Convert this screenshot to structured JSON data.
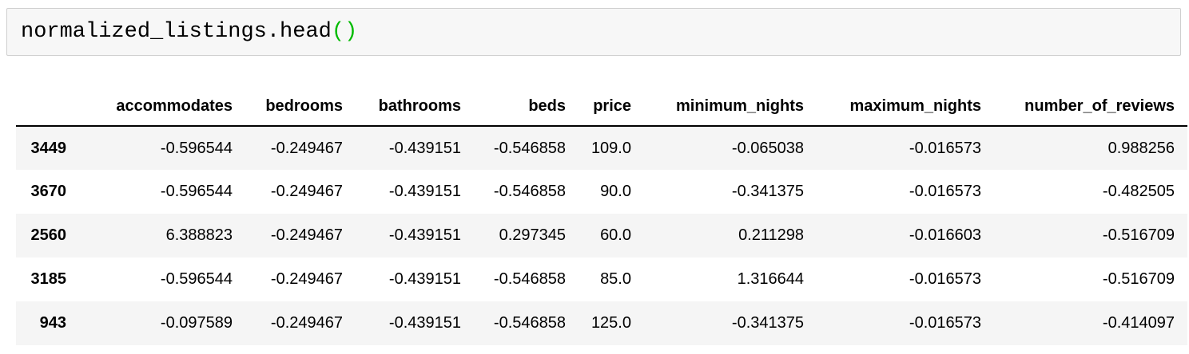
{
  "code_cell": {
    "code_main": "normalized_listings.head",
    "code_parens": "()"
  },
  "table": {
    "index_header": "",
    "columns": [
      "accommodates",
      "bedrooms",
      "bathrooms",
      "beds",
      "price",
      "minimum_nights",
      "maximum_nights",
      "number_of_reviews"
    ],
    "rows": [
      {
        "index": "3449",
        "values": [
          "-0.596544",
          "-0.249467",
          "-0.439151",
          "-0.546858",
          "109.0",
          "-0.065038",
          "-0.016573",
          "0.988256"
        ]
      },
      {
        "index": "3670",
        "values": [
          "-0.596544",
          "-0.249467",
          "-0.439151",
          "-0.546858",
          "90.0",
          "-0.341375",
          "-0.016573",
          "-0.482505"
        ]
      },
      {
        "index": "2560",
        "values": [
          "6.388823",
          "-0.249467",
          "-0.439151",
          "0.297345",
          "60.0",
          "0.211298",
          "-0.016603",
          "-0.516709"
        ]
      },
      {
        "index": "3185",
        "values": [
          "-0.596544",
          "-0.249467",
          "-0.439151",
          "-0.546858",
          "85.0",
          "1.316644",
          "-0.016573",
          "-0.516709"
        ]
      },
      {
        "index": "943",
        "values": [
          "-0.097589",
          "-0.249467",
          "-0.439151",
          "-0.546858",
          "125.0",
          "-0.341375",
          "-0.016573",
          "-0.414097"
        ]
      }
    ]
  },
  "colors": {
    "code_cell_background": "#f7f7f7",
    "code_cell_border": "#cfcfcf",
    "code_paren_green": "#00bb00",
    "row_stripe": "#f5f5f5",
    "header_border": "#000000",
    "text": "#000000"
  }
}
